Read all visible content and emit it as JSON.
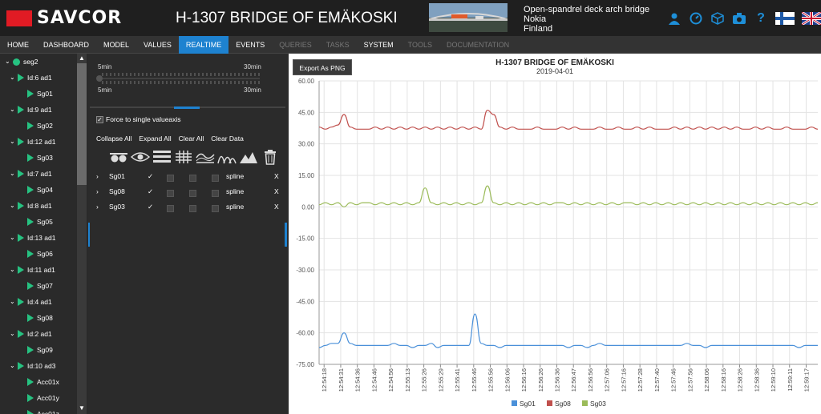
{
  "header": {
    "logo_text": "SAVCOR",
    "title": "H-1307 BRIDGE OF EMÄKOSKI",
    "bridge": {
      "type": "Open-spandrel deck arch bridge",
      "city": "Nokia",
      "country": "Finland"
    },
    "icons": [
      "user-icon",
      "dashboard-gauge-icon",
      "cube-icon",
      "camera-icon",
      "help-icon",
      "finnish-flag-icon",
      "uk-flag-icon"
    ],
    "help_label": "?",
    "accent_color": "#1e8fd8",
    "logo_color": "#e11b24"
  },
  "nav": {
    "items": [
      {
        "label": "HOME",
        "state": "normal"
      },
      {
        "label": "DASHBOARD",
        "state": "normal"
      },
      {
        "label": "MODEL",
        "state": "normal"
      },
      {
        "label": "VALUES",
        "state": "normal"
      },
      {
        "label": "REALTIME",
        "state": "active"
      },
      {
        "label": "EVENTS",
        "state": "normal"
      },
      {
        "label": "QUERIES",
        "state": "disabled"
      },
      {
        "label": "TASKS",
        "state": "disabled"
      },
      {
        "label": "SYSTEM",
        "state": "normal"
      },
      {
        "label": "TOOLS",
        "state": "disabled"
      },
      {
        "label": "DOCUMENTATION",
        "state": "disabled"
      }
    ]
  },
  "tree": {
    "root": "seg2",
    "nodes": [
      {
        "group": "Id:6 ad1",
        "sensors": [
          "Sg01"
        ]
      },
      {
        "group": "Id:9 ad1",
        "sensors": [
          "Sg02"
        ]
      },
      {
        "group": "Id:12 ad1",
        "sensors": [
          "Sg03"
        ]
      },
      {
        "group": "Id:7 ad1",
        "sensors": [
          "Sg04"
        ]
      },
      {
        "group": "Id:8 ad1",
        "sensors": [
          "Sg05"
        ]
      },
      {
        "group": "Id:13 ad1",
        "sensors": [
          "Sg06"
        ]
      },
      {
        "group": "Id:11 ad1",
        "sensors": [
          "Sg07"
        ]
      },
      {
        "group": "Id:4 ad1",
        "sensors": [
          "Sg08"
        ]
      },
      {
        "group": "Id:2 ad1",
        "sensors": [
          "Sg09"
        ]
      },
      {
        "group": "Id:10 ad3",
        "sensors": [
          "Acc01x",
          "Acc01y",
          "Acc01z"
        ]
      }
    ],
    "status_color": "#26c281"
  },
  "controls": {
    "slider": {
      "top_left": "5min",
      "top_right": "30min",
      "bottom_left": "5min",
      "bottom_right": "30min"
    },
    "force_single_axis": {
      "label": "Force to single valueaxis",
      "checked": true,
      "mark": "✓"
    },
    "actions": [
      "Collapse All",
      "Expand All",
      "Clear All",
      "Clear Data"
    ],
    "toolbar_icons": [
      "eyeglasses-icon",
      "eye-icon",
      "bars-icon",
      "grid-icon",
      "area-line-icon",
      "bell-curves-icon",
      "mountain-chart-icon",
      "trash-icon"
    ],
    "series": [
      {
        "name": "Sg01",
        "checked": "✓",
        "type": "spline",
        "remove": "X"
      },
      {
        "name": "Sg08",
        "checked": "✓",
        "type": "spline",
        "remove": "X"
      },
      {
        "name": "Sg03",
        "checked": "✓",
        "type": "spline",
        "remove": "X"
      }
    ],
    "expand_mark": "›"
  },
  "chart": {
    "export_label": "Export As PNG",
    "title": "H-1307 BRIDGE OF EMÄKOSKI",
    "subtitle": "2019-04-01"
  },
  "chart_data": {
    "type": "line",
    "title": "H-1307 BRIDGE OF EMÄKOSKI",
    "subtitle": "2019-04-01",
    "xlabel": "",
    "ylabel": "",
    "ylim": [
      -75,
      60
    ],
    "yticks": [
      60,
      45,
      30,
      15,
      0,
      -15,
      -30,
      -45,
      -60,
      -75
    ],
    "ytick_labels": [
      "60.00",
      "45.00",
      "30.00",
      "15.00",
      "0.00",
      "-15.00",
      "-30.00",
      "-45.00",
      "-60.00",
      "-75.00"
    ],
    "xticks": [
      "12:54:18",
      "12:54:31",
      "12:54:36",
      "12:54:46",
      "12:54:56",
      "12:55:13",
      "12:55:26",
      "12:55:29",
      "12:55:41",
      "12:55:46",
      "12:55:56",
      "12:56:06",
      "12:56:16",
      "12:56:26",
      "12:56:36",
      "12:56:47",
      "12:56:56",
      "12:57:06",
      "12:57:16",
      "12:57:28",
      "12:57:40",
      "12:57:46",
      "12:57:56",
      "12:58:06",
      "12:58:16",
      "12:58:26",
      "12:58:36",
      "12:59:10",
      "12:59:11",
      "12:59:17"
    ],
    "grid": true,
    "legend_position": "bottom-center",
    "series": [
      {
        "name": "Sg01",
        "color": "#4a90d9",
        "values": [
          -67,
          -66,
          -65,
          -65,
          -60,
          -65,
          -66,
          -66,
          -66,
          -66,
          -66,
          -66,
          -65,
          -66,
          -66,
          -67,
          -66,
          -66,
          -65,
          -67,
          -66,
          -66,
          -66,
          -66,
          -66,
          -51,
          -65,
          -66,
          -66,
          -67,
          -66,
          -66,
          -66,
          -66,
          -66,
          -66,
          -66,
          -66,
          -66,
          -66,
          -67,
          -66,
          -66,
          -67,
          -66,
          -65,
          -66,
          -66,
          -66,
          -66,
          -66,
          -66,
          -66,
          -66,
          -66,
          -66,
          -66,
          -66,
          -66,
          -65,
          -66,
          -66,
          -67,
          -66,
          -66,
          -66,
          -66,
          -66,
          -66,
          -66,
          -66,
          -66,
          -66,
          -66,
          -66,
          -66,
          -66,
          -67,
          -66,
          -66,
          -66
        ]
      },
      {
        "name": "Sg08",
        "color": "#c0504d",
        "values": [
          38,
          37,
          38,
          39,
          44,
          38,
          37,
          37,
          37,
          38,
          37,
          38,
          37,
          38,
          37,
          38,
          37,
          38,
          37,
          38,
          37,
          38,
          37,
          38,
          37,
          38,
          37,
          46,
          44,
          38,
          37,
          38,
          37,
          37,
          37,
          38,
          37,
          37,
          37,
          38,
          37,
          38,
          37,
          37,
          37,
          38,
          37,
          37,
          38,
          37,
          37,
          38,
          37,
          38,
          37,
          37,
          37,
          38,
          37,
          38,
          37,
          38,
          37,
          38,
          37,
          38,
          37,
          38,
          37,
          37,
          38,
          37,
          38,
          37,
          37,
          38,
          37,
          37,
          37,
          38,
          37
        ]
      },
      {
        "name": "Sg03",
        "color": "#9bbb59",
        "values": [
          1,
          2,
          1,
          2,
          0,
          2,
          1,
          2,
          2,
          1,
          2,
          1,
          2,
          1,
          2,
          1,
          2,
          9,
          2,
          1,
          2,
          1,
          2,
          1,
          2,
          1,
          2,
          10,
          2,
          1,
          2,
          1,
          2,
          1,
          2,
          1,
          2,
          1,
          2,
          2,
          1,
          2,
          1,
          2,
          1,
          2,
          1,
          2,
          1,
          2,
          2,
          1,
          2,
          1,
          2,
          1,
          2,
          1,
          2,
          1,
          2,
          1,
          2,
          1,
          2,
          1,
          2,
          1,
          2,
          1,
          2,
          1,
          2,
          1,
          2,
          1,
          2,
          1,
          2,
          1,
          2
        ]
      }
    ]
  }
}
